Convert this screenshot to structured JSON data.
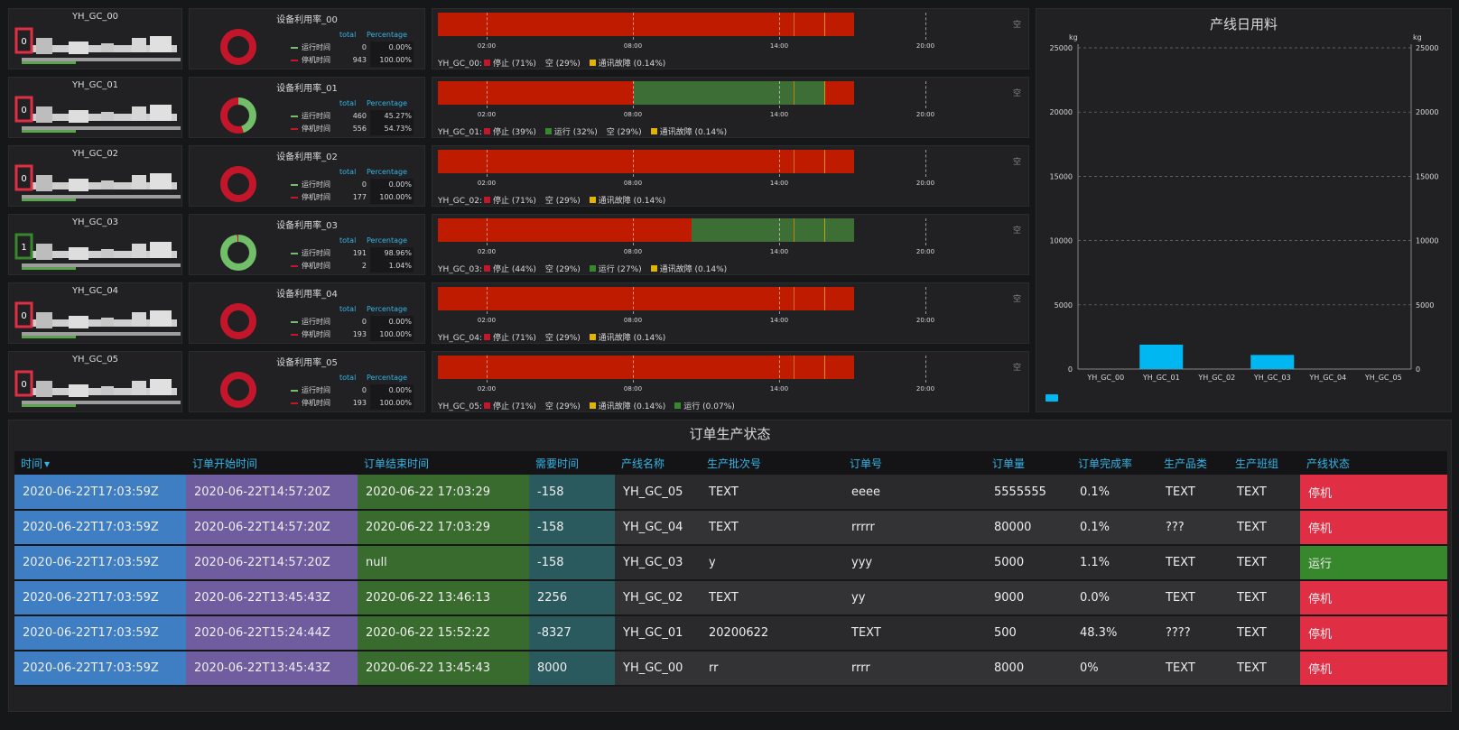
{
  "machines": [
    {
      "name": "YH_GC_00",
      "state_value": "0",
      "state_color": "#e02f44",
      "util_title": "设备利用率_00",
      "run": "0",
      "run_pct": "0.00%",
      "stop": "943",
      "stop_pct": "100.00%",
      "run_fraction": 0.0
    },
    {
      "name": "YH_GC_01",
      "state_value": "0",
      "state_color": "#e02f44",
      "util_title": "设备利用率_01",
      "run": "460",
      "run_pct": "45.27%",
      "stop": "556",
      "stop_pct": "54.73%",
      "run_fraction": 0.4527
    },
    {
      "name": "YH_GC_02",
      "state_value": "0",
      "state_color": "#e02f44",
      "util_title": "设备利用率_02",
      "run": "0",
      "run_pct": "0.00%",
      "stop": "177",
      "stop_pct": "100.00%",
      "run_fraction": 0.0
    },
    {
      "name": "YH_GC_03",
      "state_value": "1",
      "state_color": "#37872d",
      "util_title": "设备利用率_03",
      "run": "191",
      "run_pct": "98.96%",
      "stop": "2",
      "stop_pct": "1.04%",
      "run_fraction": 0.9896
    },
    {
      "name": "YH_GC_04",
      "state_value": "0",
      "state_color": "#e02f44",
      "util_title": "设备利用率_04",
      "run": "0",
      "run_pct": "0.00%",
      "stop": "193",
      "stop_pct": "100.00%",
      "run_fraction": 0.0
    },
    {
      "name": "YH_GC_05",
      "state_value": "0",
      "state_color": "#e02f44",
      "util_title": "设备利用率_05",
      "run": "0",
      "run_pct": "0.00%",
      "stop": "193",
      "stop_pct": "100.00%",
      "run_fraction": 0.0
    }
  ],
  "legend": {
    "hdr_total": "total",
    "hdr_pct": "Percentage",
    "run_label": "运行时间",
    "stop_label": "停机时间",
    "run_color": "#73bf69",
    "stop_color": "#c4162a"
  },
  "timelines": [
    {
      "segments": [
        [
          "stop",
          0,
          1
        ]
      ],
      "legend": [
        {
          "label": "YH_GC_00: "
        },
        {
          "label": "停止 (71%)",
          "color": "#c4162a"
        },
        {
          "label": "空 (29%)"
        },
        {
          "label": "通讯故障 (0.14%)",
          "color": "#e0b400"
        }
      ]
    },
    {
      "segments": [
        [
          "stop",
          0,
          0.47
        ],
        [
          "run",
          0.47,
          0.93
        ],
        [
          "stop",
          0.93,
          1
        ]
      ],
      "legend": [
        {
          "label": "YH_GC_01: "
        },
        {
          "label": "停止 (39%)",
          "color": "#c4162a"
        },
        {
          "label": "运行 (32%)",
          "color": "#37872d"
        },
        {
          "label": "空 (29%)"
        },
        {
          "label": "通讯故障 (0.14%)",
          "color": "#e0b400"
        }
      ]
    },
    {
      "segments": [
        [
          "stop",
          0,
          1
        ]
      ],
      "legend": [
        {
          "label": "YH_GC_02: "
        },
        {
          "label": "停止 (71%)",
          "color": "#c4162a"
        },
        {
          "label": "空 (29%)"
        },
        {
          "label": "通讯故障 (0.14%)",
          "color": "#e0b400"
        }
      ]
    },
    {
      "segments": [
        [
          "stop",
          0,
          0.61
        ],
        [
          "run",
          0.61,
          1
        ]
      ],
      "legend": [
        {
          "label": "YH_GC_03: "
        },
        {
          "label": "停止 (44%)",
          "color": "#c4162a"
        },
        {
          "label": "空 (29%)"
        },
        {
          "label": "运行 (27%)",
          "color": "#37872d"
        },
        {
          "label": "通讯故障 (0.14%)",
          "color": "#e0b400"
        }
      ]
    },
    {
      "segments": [
        [
          "stop",
          0,
          1
        ]
      ],
      "legend": [
        {
          "label": "YH_GC_04: "
        },
        {
          "label": "停止 (71%)",
          "color": "#c4162a"
        },
        {
          "label": "空 (29%)"
        },
        {
          "label": "通讯故障 (0.14%)",
          "color": "#e0b400"
        }
      ]
    },
    {
      "segments": [
        [
          "stop",
          0,
          1
        ]
      ],
      "legend": [
        {
          "label": "YH_GC_05: "
        },
        {
          "label": "停止 (71%)",
          "color": "#c4162a"
        },
        {
          "label": "空 (29%)"
        },
        {
          "label": "通讯故障 (0.14%)",
          "color": "#e0b400"
        },
        {
          "label": "运行 (0.07%)",
          "color": "#37872d"
        }
      ]
    }
  ],
  "timeline_ticks": [
    "02:00",
    "08:00",
    "14:00",
    "20:00"
  ],
  "timeline_empty_label": "空",
  "chart_data": {
    "type": "bar",
    "title": "产线日用料",
    "categories": [
      "YH_GC_00",
      "YH_GC_01",
      "YH_GC_02",
      "YH_GC_03",
      "YH_GC_04",
      "YH_GC_05"
    ],
    "values": [
      0,
      1900,
      0,
      1100,
      0,
      0
    ],
    "yticks": [
      "0",
      "5000",
      "10000",
      "15000",
      "20000",
      "25000"
    ],
    "ylim": [
      0,
      25000
    ],
    "yunit_left": "kg",
    "yunit_right": "kg",
    "bar_color": "#00b7f1"
  },
  "orders": {
    "title": "订单生产状态",
    "columns": [
      "时间",
      "订单开始时间",
      "订单结束时间",
      "需要时间",
      "产线名称",
      "生产批次号",
      "订单号",
      "订单量",
      "订单完成率",
      "生产品类",
      "生产班组",
      "产线状态"
    ],
    "sort_indicator": "▾",
    "rows": [
      [
        "2020-06-22T17:03:59Z",
        "2020-06-22T14:57:20Z",
        "2020-06-22 17:03:29",
        "-158",
        "YH_GC_05",
        "TEXT",
        "eeee",
        "5555555",
        "0.1%",
        "TEXT",
        "TEXT",
        "停机"
      ],
      [
        "2020-06-22T17:03:59Z",
        "2020-06-22T14:57:20Z",
        "2020-06-22 17:03:29",
        "-158",
        "YH_GC_04",
        "TEXT",
        "rrrrr",
        "80000",
        "0.1%",
        "???",
        "TEXT",
        "停机"
      ],
      [
        "2020-06-22T17:03:59Z",
        "2020-06-22T14:57:20Z",
        "null",
        "-158",
        "YH_GC_03",
        "y",
        "yyy",
        "5000",
        "1.1%",
        "TEXT",
        "TEXT",
        "运行"
      ],
      [
        "2020-06-22T17:03:59Z",
        "2020-06-22T13:45:43Z",
        "2020-06-22 13:46:13",
        "2256",
        "YH_GC_02",
        "TEXT",
        "yy",
        "9000",
        "0.0%",
        "TEXT",
        "TEXT",
        "停机"
      ],
      [
        "2020-06-22T17:03:59Z",
        "2020-06-22T15:24:44Z",
        "2020-06-22 15:52:22",
        "-8327",
        "YH_GC_01",
        "20200622",
        "TEXT",
        "500",
        "48.3%",
        "????",
        "TEXT",
        "停机"
      ],
      [
        "2020-06-22T17:03:59Z",
        "2020-06-22T13:45:43Z",
        "2020-06-22 13:45:43",
        "8000",
        "YH_GC_00",
        "rr",
        "rrrr",
        "8000",
        "0%",
        "TEXT",
        "TEXT",
        "停机"
      ]
    ],
    "status_colors": {
      "停机": "#e02f44",
      "运行": "#37872d"
    },
    "column_colors": [
      "#3f7ec2",
      "#705da0",
      "#3a6b2e",
      "#2b5a5e"
    ]
  }
}
